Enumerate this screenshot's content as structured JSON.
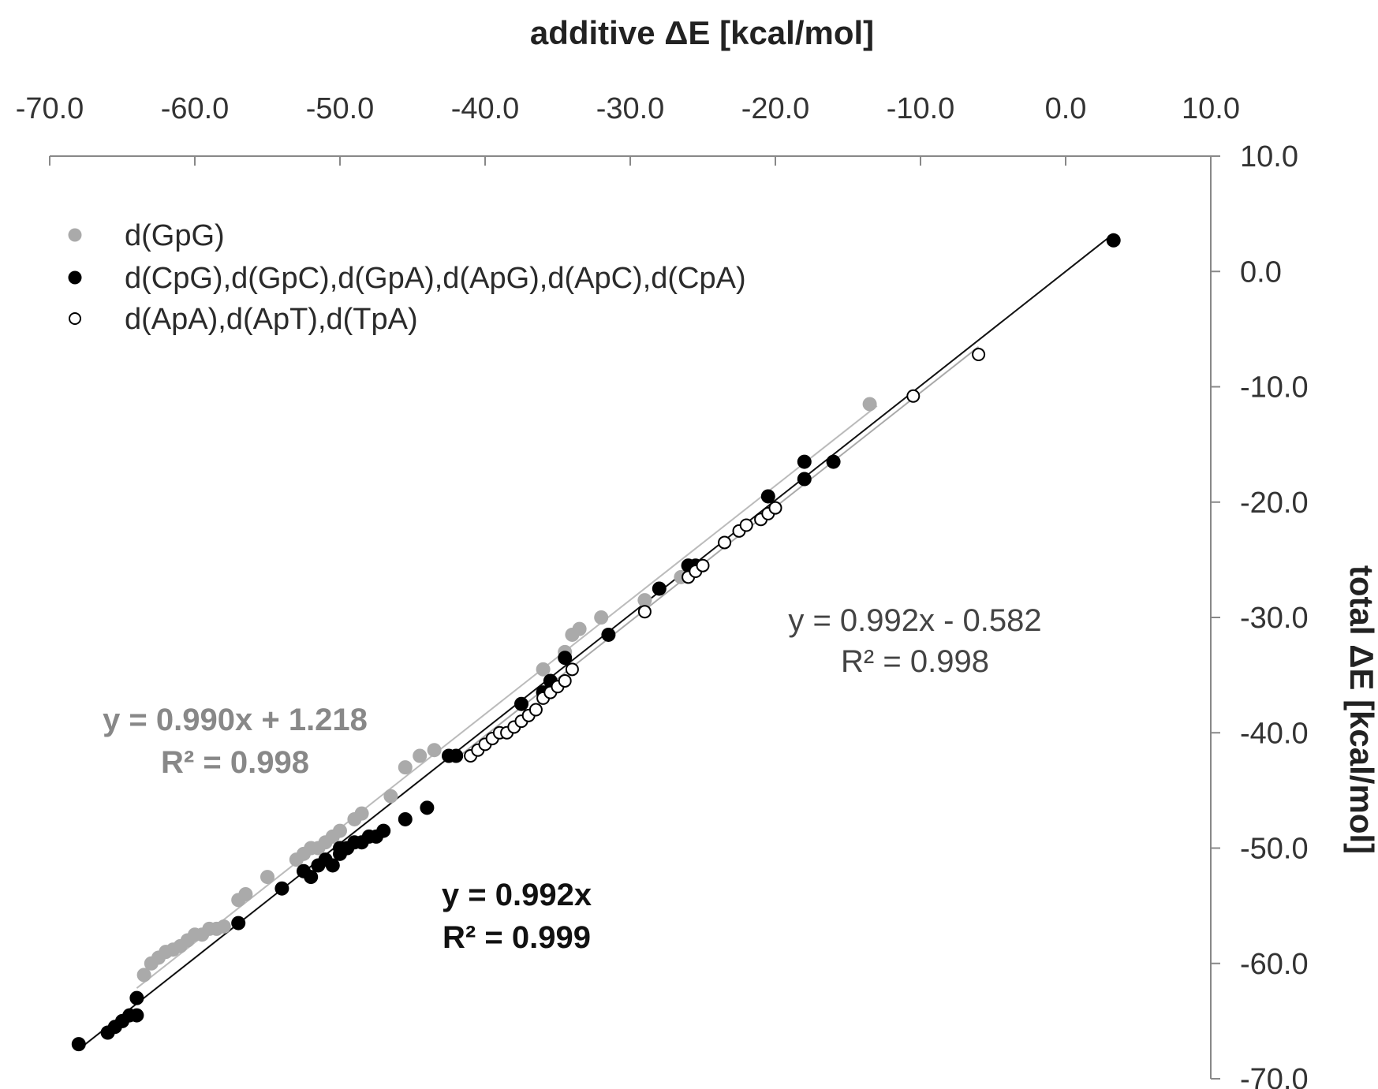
{
  "chart_data": {
    "type": "scatter",
    "title": "",
    "xlabel": "additive ΔE [kcal/mol]",
    "ylabel": "total  ΔE [kcal/mol]",
    "x_axis_position": "top",
    "y_axis_position": "right",
    "xlim": [
      -70,
      10
    ],
    "ylim": [
      -70,
      10
    ],
    "x_ticks": [
      "-70.0",
      "-60.0",
      "-50.0",
      "-40.0",
      "-30.0",
      "-20.0",
      "-10.0",
      "0.0",
      "10.0"
    ],
    "x_tick_values": [
      -70,
      -60,
      -50,
      -40,
      -30,
      -20,
      -10,
      0,
      10
    ],
    "y_ticks": [
      "10.0",
      "0.0",
      "-10.0",
      "-20.0",
      "-30.0",
      "-40.0",
      "-50.0",
      "-60.0",
      "-70.0"
    ],
    "y_tick_values": [
      10,
      0,
      -10,
      -20,
      -30,
      -40,
      -50,
      -60,
      -70
    ],
    "grid": false,
    "legend_position": "top-left",
    "series": [
      {
        "name": "d(GpG)",
        "marker": "filled-circle",
        "color": "#aaaaaa",
        "points": [
          [
            -63.5,
            -61.0
          ],
          [
            -63.0,
            -60.0
          ],
          [
            -62.5,
            -59.5
          ],
          [
            -62.0,
            -59.0
          ],
          [
            -61.5,
            -58.8
          ],
          [
            -61.0,
            -58.5
          ],
          [
            -60.5,
            -58.0
          ],
          [
            -60.0,
            -57.5
          ],
          [
            -59.5,
            -57.5
          ],
          [
            -59.0,
            -57.0
          ],
          [
            -58.5,
            -57.0
          ],
          [
            -58.0,
            -56.8
          ],
          [
            -57.0,
            -54.5
          ],
          [
            -56.5,
            -54.0
          ],
          [
            -55.0,
            -52.5
          ],
          [
            -53.0,
            -51.0
          ],
          [
            -52.5,
            -50.5
          ],
          [
            -52.0,
            -50.0
          ],
          [
            -51.5,
            -50.0
          ],
          [
            -51.0,
            -49.5
          ],
          [
            -50.5,
            -49.0
          ],
          [
            -50.0,
            -48.5
          ],
          [
            -49.0,
            -47.5
          ],
          [
            -48.5,
            -47.0
          ],
          [
            -46.5,
            -45.5
          ],
          [
            -45.5,
            -43.0
          ],
          [
            -44.5,
            -42.0
          ],
          [
            -43.5,
            -41.5
          ],
          [
            -36.0,
            -34.5
          ],
          [
            -34.5,
            -33.0
          ],
          [
            -34.0,
            -31.5
          ],
          [
            -33.5,
            -31.0
          ],
          [
            -32.0,
            -30.0
          ],
          [
            -29.0,
            -28.5
          ],
          [
            -26.5,
            -26.5
          ],
          [
            -13.5,
            -11.5
          ]
        ]
      },
      {
        "name": "d(CpG),d(GpC),d(GpA),d(ApG),d(ApC),d(CpA)",
        "marker": "filled-circle",
        "color": "#000000",
        "points": [
          [
            -68.0,
            -67.0
          ],
          [
            -66.0,
            -66.0
          ],
          [
            -65.5,
            -65.5
          ],
          [
            -65.0,
            -65.0
          ],
          [
            -64.5,
            -64.5
          ],
          [
            -64.0,
            -64.5
          ],
          [
            -64.0,
            -63.0
          ],
          [
            -57.0,
            -56.5
          ],
          [
            -54.0,
            -53.5
          ],
          [
            -52.5,
            -52.0
          ],
          [
            -52.0,
            -52.5
          ],
          [
            -51.5,
            -51.5
          ],
          [
            -51.0,
            -51.0
          ],
          [
            -50.5,
            -51.5
          ],
          [
            -50.0,
            -50.5
          ],
          [
            -50.0,
            -50.0
          ],
          [
            -49.5,
            -50.0
          ],
          [
            -49.0,
            -49.5
          ],
          [
            -48.5,
            -49.5
          ],
          [
            -48.0,
            -49.0
          ],
          [
            -47.5,
            -49.0
          ],
          [
            -47.0,
            -48.5
          ],
          [
            -45.5,
            -47.5
          ],
          [
            -44.0,
            -46.5
          ],
          [
            -42.5,
            -42.0
          ],
          [
            -42.0,
            -42.0
          ],
          [
            -37.5,
            -37.5
          ],
          [
            -36.0,
            -36.5
          ],
          [
            -35.5,
            -35.5
          ],
          [
            -34.5,
            -33.5
          ],
          [
            -31.5,
            -31.5
          ],
          [
            -28.0,
            -27.5
          ],
          [
            -26.0,
            -25.5
          ],
          [
            -25.5,
            -25.5
          ],
          [
            -20.5,
            -19.5
          ],
          [
            -18.0,
            -18.0
          ],
          [
            -18.0,
            -16.5
          ],
          [
            -16.0,
            -16.5
          ],
          [
            3.3,
            2.7
          ]
        ]
      },
      {
        "name": "d(ApA),d(ApT),d(TpA)",
        "marker": "open-circle",
        "color": "#000000",
        "points": [
          [
            -41.0,
            -42.0
          ],
          [
            -40.5,
            -41.5
          ],
          [
            -40.0,
            -41.0
          ],
          [
            -39.5,
            -40.5
          ],
          [
            -39.0,
            -40.0
          ],
          [
            -38.5,
            -40.0
          ],
          [
            -38.0,
            -39.5
          ],
          [
            -37.5,
            -39.0
          ],
          [
            -37.0,
            -38.5
          ],
          [
            -36.5,
            -38.0
          ],
          [
            -36.0,
            -37.0
          ],
          [
            -35.5,
            -36.5
          ],
          [
            -35.0,
            -36.0
          ],
          [
            -34.5,
            -35.5
          ],
          [
            -34.0,
            -34.5
          ],
          [
            -29.0,
            -29.5
          ],
          [
            -26.0,
            -26.5
          ],
          [
            -25.5,
            -26.0
          ],
          [
            -25.0,
            -25.5
          ],
          [
            -23.5,
            -23.5
          ],
          [
            -22.5,
            -22.5
          ],
          [
            -22.0,
            -22.0
          ],
          [
            -21.0,
            -21.5
          ],
          [
            -20.5,
            -21.0
          ],
          [
            -20.0,
            -20.5
          ],
          [
            -10.5,
            -10.8
          ],
          [
            -6.0,
            -7.2
          ]
        ]
      }
    ],
    "trendlines": [
      {
        "series": "d(GpG)",
        "slope": 0.99,
        "intercept": 1.218,
        "color": "#bbbbbb",
        "x_range": [
          -64,
          -13
        ],
        "equation": "y = 0.990x + 1.218",
        "r2": "R² = 0.998",
        "label_color": "#888888",
        "label_weight": "bold"
      },
      {
        "series": "d(CpG),d(GpC),d(GpA),d(ApG),d(ApC),d(CpA)",
        "slope": 0.992,
        "intercept": 0,
        "color": "#111111",
        "x_range": [
          -68,
          3.3
        ],
        "equation": "y = 0.992x",
        "r2": "R² = 0.999",
        "label_color": "#111111",
        "label_weight": "bold"
      },
      {
        "series": "d(ApA),d(ApT),d(TpA)",
        "slope": 0.992,
        "intercept": -0.582,
        "color": "#aaaaaa",
        "x_range": [
          -42,
          -6
        ],
        "equation": "y = 0.992x - 0.582",
        "r2": "R² = 0.998",
        "label_color": "#444444",
        "label_weight": "normal"
      }
    ]
  }
}
